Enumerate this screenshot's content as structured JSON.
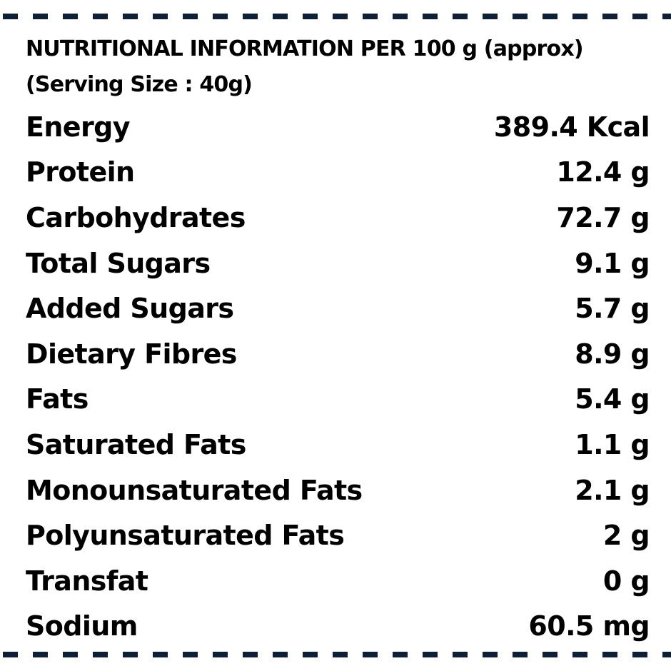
{
  "header": {
    "title": "NUTRITIONAL INFORMATION PER 100 g (approx)",
    "serving": "(Serving Size : 40g)"
  },
  "nutrients": [
    {
      "name": "Energy",
      "value": "389.4 Kcal"
    },
    {
      "name": "Protein",
      "value": "12.4 g"
    },
    {
      "name": "Carbohydrates",
      "value": "72.7 g"
    },
    {
      "name": "Total Sugars",
      "value": "9.1 g"
    },
    {
      "name": "Added Sugars",
      "value": "5.7 g"
    },
    {
      "name": "Dietary Fibres",
      "value": "8.9 g"
    },
    {
      "name": "Fats",
      "value": "5.4 g"
    },
    {
      "name": "Saturated Fats",
      "value": "1.1 g"
    },
    {
      "name": "Monounsaturated Fats",
      "value": "2.1 g"
    },
    {
      "name": "Polyunsaturated Fats",
      "value": "2 g"
    },
    {
      "name": "Transfat",
      "value": "0 g"
    },
    {
      "name": "Sodium",
      "value": "60.5 mg"
    }
  ],
  "colors": {
    "border": "#0f1f35",
    "text": "#000000"
  }
}
